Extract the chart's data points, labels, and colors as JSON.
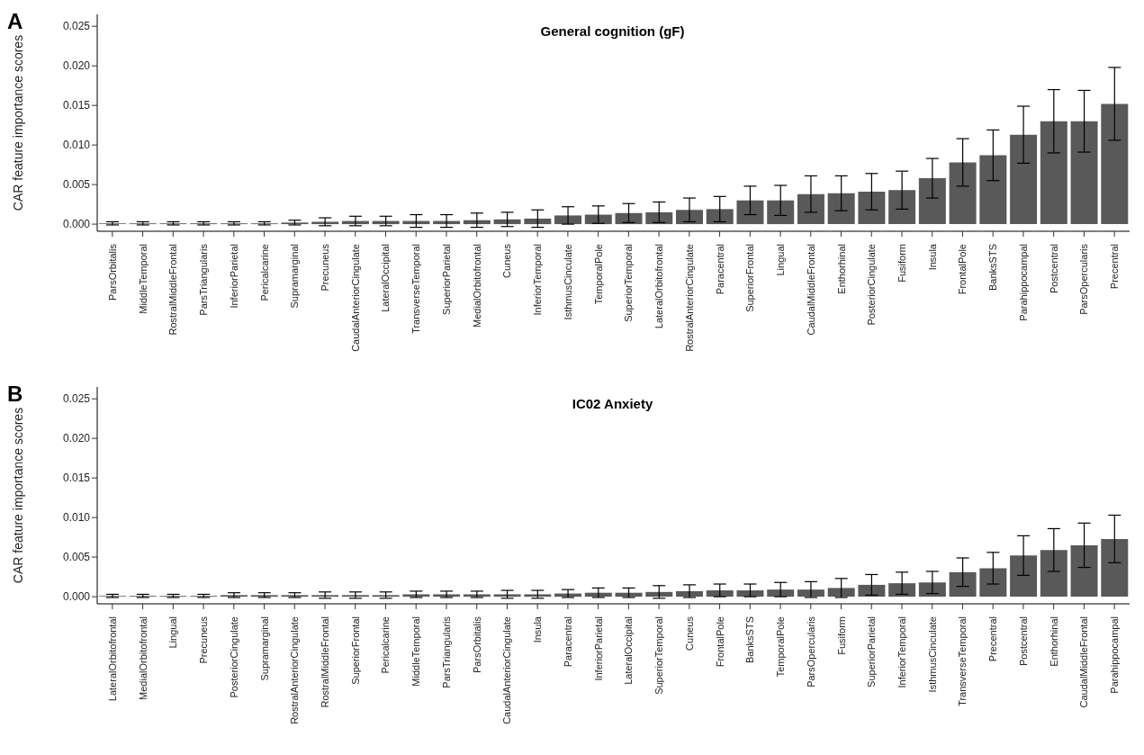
{
  "chart_data": [
    {
      "type": "bar",
      "title": "General cognition (gF)",
      "ylabel": "CAR feature importance scores",
      "annotations": [
        "A"
      ],
      "color": "#595959",
      "categories": [
        "ParsOrbitalis",
        "MiddleTemporal",
        "RostralMiddleFrontal",
        "ParsTriangularis",
        "InferiorParietal",
        "Pericalcarine",
        "Supramarginal",
        "Precuneus",
        "CaudalAnteriorCingulate",
        "LateralOccipital",
        "TransverseTemporal",
        "SuperiorParietal",
        "MedialOrbitofrontal",
        "Cuneus",
        "InferiorTemporal",
        "IsthmusCinculate",
        "TemporalPole",
        "SuperiorTemporal",
        "LateralOrbitofrontal",
        "RostralAnteriorCingulate",
        "Paracentral",
        "SuperiorFrontal",
        "Lingual",
        "CaudalMiddleFrontal",
        "Enthorhinal",
        "PosteriorCingulate",
        "Fusiform",
        "Insula",
        "FrontalPole",
        "BanksSTS",
        "Parahippocampal",
        "Postcentral",
        "ParsOpercularis",
        "Precentral"
      ],
      "values": [
        0.0001,
        0.0001,
        0.0001,
        0.0001,
        0.0001,
        0.0001,
        0.0002,
        0.0003,
        0.0004,
        0.0004,
        0.0004,
        0.0004,
        0.0005,
        0.0006,
        0.0007,
        0.0011,
        0.0012,
        0.0014,
        0.0015,
        0.0018,
        0.0019,
        0.003,
        0.003,
        0.0038,
        0.0039,
        0.0041,
        0.0043,
        0.0058,
        0.0078,
        0.0087,
        0.0113,
        0.013,
        0.013,
        0.0152
      ],
      "errors": [
        0.0002,
        0.0002,
        0.0002,
        0.0002,
        0.0002,
        0.0002,
        0.0003,
        0.0005,
        0.0006,
        0.0006,
        0.0008,
        0.0008,
        0.0009,
        0.0009,
        0.0011,
        0.0011,
        0.0011,
        0.0012,
        0.0013,
        0.0015,
        0.0016,
        0.0018,
        0.0019,
        0.0023,
        0.0022,
        0.0023,
        0.0024,
        0.0025,
        0.003,
        0.0032,
        0.0036,
        0.004,
        0.0039,
        0.0046
      ],
      "ylim": [
        -0.0009,
        0.0265
      ],
      "yticks": [
        {
          "value": 0,
          "label": "0.000"
        },
        {
          "value": 0.005,
          "label": "0.005"
        },
        {
          "value": 0.01,
          "label": "0.010"
        },
        {
          "value": 0.015,
          "label": "0.015"
        },
        {
          "value": 0.02,
          "label": "0.020"
        },
        {
          "value": 0.025,
          "label": "0.025"
        }
      ]
    },
    {
      "type": "bar",
      "title": "IC02 Anxiety",
      "ylabel": "CAR feature importance scores",
      "annotations": [
        "B"
      ],
      "color": "#595959",
      "categories": [
        "LateralOrbitofrontal",
        "MedialOrbitofrontal",
        "Lingual",
        "Precuneus",
        "PosteriorCingulate",
        "Supramarginal",
        "RostralAnteriorCingulate",
        "RostralMiddleFrontal",
        "SuperiorFrontal",
        "Pericalcarine",
        "MiddleTemporal",
        "ParsTriangularis",
        "ParsOrbitalis",
        "CaudalAnteriorCingulate",
        "Insula",
        "Paracentral",
        "InferiorParietal",
        "LateralOccipital",
        "SuperiorTemporal",
        "Cuneus",
        "FrontalPole",
        "BanksSTS",
        "TemporalPole",
        "ParsOpercularis",
        "Fusiform",
        "SuperiorParietal",
        "InferiorTemporal",
        "IsthmusCinculate",
        "TransverseTemporal",
        "Precentral",
        "Postcentral",
        "Enthorhinal",
        "CaudalMiddleFrontal",
        "Parahippocampal"
      ],
      "values": [
        0.0001,
        0.0001,
        0.0001,
        0.0001,
        0.0002,
        0.0002,
        0.0002,
        0.0002,
        0.0002,
        0.0002,
        0.0003,
        0.0003,
        0.0003,
        0.0003,
        0.0003,
        0.0004,
        0.0005,
        0.0005,
        0.0006,
        0.0007,
        0.0008,
        0.0008,
        0.0009,
        0.0009,
        0.0011,
        0.0015,
        0.0017,
        0.0018,
        0.0031,
        0.0036,
        0.0052,
        0.0059,
        0.0065,
        0.0073
      ],
      "errors": [
        0.0002,
        0.0002,
        0.0002,
        0.0002,
        0.0003,
        0.0003,
        0.0003,
        0.0004,
        0.0004,
        0.0004,
        0.0004,
        0.0004,
        0.0004,
        0.0005,
        0.0005,
        0.0005,
        0.0006,
        0.0006,
        0.0008,
        0.0008,
        0.0008,
        0.0008,
        0.0009,
        0.001,
        0.0012,
        0.0013,
        0.0014,
        0.0014,
        0.0018,
        0.002,
        0.0025,
        0.0027,
        0.0028,
        0.003
      ],
      "ylim": [
        -0.0009,
        0.0265
      ],
      "yticks": [
        {
          "value": 0,
          "label": "0.000"
        },
        {
          "value": 0.005,
          "label": "0.005"
        },
        {
          "value": 0.01,
          "label": "0.010"
        },
        {
          "value": 0.015,
          "label": "0.015"
        },
        {
          "value": 0.02,
          "label": "0.020"
        },
        {
          "value": 0.025,
          "label": "0.025"
        }
      ]
    }
  ]
}
